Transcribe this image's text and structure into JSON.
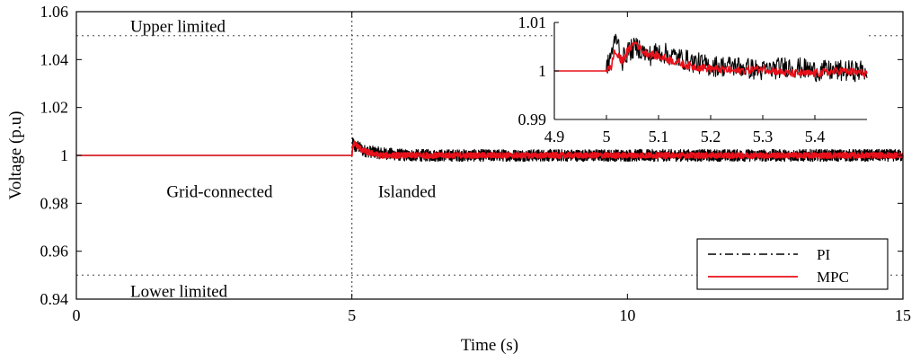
{
  "chart_data": [
    {
      "type": "line",
      "title": "",
      "xlabel": "Time (s)",
      "ylabel": "Voltage (p.u)",
      "xlim": [
        0,
        15
      ],
      "ylim": [
        0.94,
        1.06
      ],
      "x_ticks": [
        0,
        5,
        10,
        15
      ],
      "y_ticks": [
        0.94,
        0.96,
        0.98,
        1,
        1.02,
        1.04,
        1.06
      ],
      "x_tick_labels": [
        "0",
        "5",
        "10",
        "15"
      ],
      "y_tick_labels": [
        "0.94",
        "0.96",
        "0.98",
        "1",
        "1.02",
        "1.04",
        "1.06"
      ],
      "grid": false,
      "legend_position": "bottom-right",
      "event_line_x": 5,
      "limits": [
        {
          "y": 1.05,
          "label": "Upper limited"
        },
        {
          "y": 0.95,
          "label": "Lower limited"
        }
      ],
      "region_labels": [
        {
          "x": 2.6,
          "y": 0.9825,
          "text": "Grid-connected"
        },
        {
          "x": 6.0,
          "y": 0.9825,
          "text": "Islanded"
        }
      ],
      "series": [
        {
          "name": "PI",
          "color": "#000000",
          "style": "dash-dot",
          "x": [
            0,
            4.99,
            5.0,
            5.02,
            5.05,
            5.1,
            5.2,
            5.5,
            6,
            8,
            10,
            12,
            15
          ],
          "y": [
            1.0,
            1.0,
            1.0,
            1.006,
            1.003,
            1.004,
            1.002,
            1.001,
            1.0,
            1.0,
            1.0,
            1.0,
            1.0
          ],
          "noise_amplitude_after_5s": 0.0025
        },
        {
          "name": "MPC",
          "color": "#e8101a",
          "style": "solid",
          "x": [
            0,
            4.99,
            5.0,
            5.02,
            5.05,
            5.1,
            5.2,
            5.5,
            6,
            8,
            10,
            12,
            15
          ],
          "y": [
            1.0,
            1.0,
            1.0,
            1.004,
            1.005,
            1.004,
            1.002,
            1.0,
            1.0,
            1.0,
            1.0,
            1.0,
            1.0
          ],
          "noise_amplitude_after_5s": 0.0012
        }
      ]
    },
    {
      "type": "line",
      "title": "",
      "xlim": [
        4.9,
        5.5
      ],
      "ylim": [
        0.99,
        1.01
      ],
      "x_ticks": [
        4.9,
        5,
        5.1,
        5.2,
        5.3,
        5.4
      ],
      "y_ticks": [
        0.99,
        1,
        1.01
      ],
      "x_tick_labels": [
        "4.9",
        "5",
        "5.1",
        "5.2",
        "5.3",
        "5.4"
      ],
      "y_tick_labels": [
        "0.99",
        "1",
        "1.01"
      ],
      "grid": false,
      "series": [
        {
          "name": "PI",
          "color": "#000000",
          "style": "dash-dot",
          "x": [
            4.9,
            4.99,
            5.0,
            5.01,
            5.02,
            5.03,
            5.04,
            5.06,
            5.08,
            5.1,
            5.13,
            5.16,
            5.2,
            5.25,
            5.3,
            5.35,
            5.4,
            5.45,
            5.5
          ],
          "y": [
            1.0,
            1.0,
            1.0,
            1.004,
            1.007,
            1.002,
            1.004,
            1.005,
            1.003,
            1.004,
            1.003,
            1.002,
            1.001,
            1.001,
            1.0,
            1.001,
            1.0,
            1.0,
            1.0
          ],
          "noise_amplitude": 0.0022
        },
        {
          "name": "MPC",
          "color": "#e8101a",
          "style": "solid",
          "x": [
            4.9,
            4.99,
            5.0,
            5.01,
            5.015,
            5.03,
            5.04,
            5.055,
            5.07,
            5.1,
            5.13,
            5.16,
            5.2,
            5.25,
            5.3,
            5.35,
            5.4,
            5.45,
            5.5
          ],
          "y": [
            1.0,
            1.0,
            1.0,
            1.001,
            1.004,
            1.002,
            1.004,
            1.006,
            1.004,
            1.003,
            1.002,
            1.001,
            1.0005,
            1.0,
            1.0005,
            0.9995,
            0.9995,
            1.0,
            0.9995
          ],
          "noise_amplitude": 0.0008
        }
      ]
    }
  ]
}
